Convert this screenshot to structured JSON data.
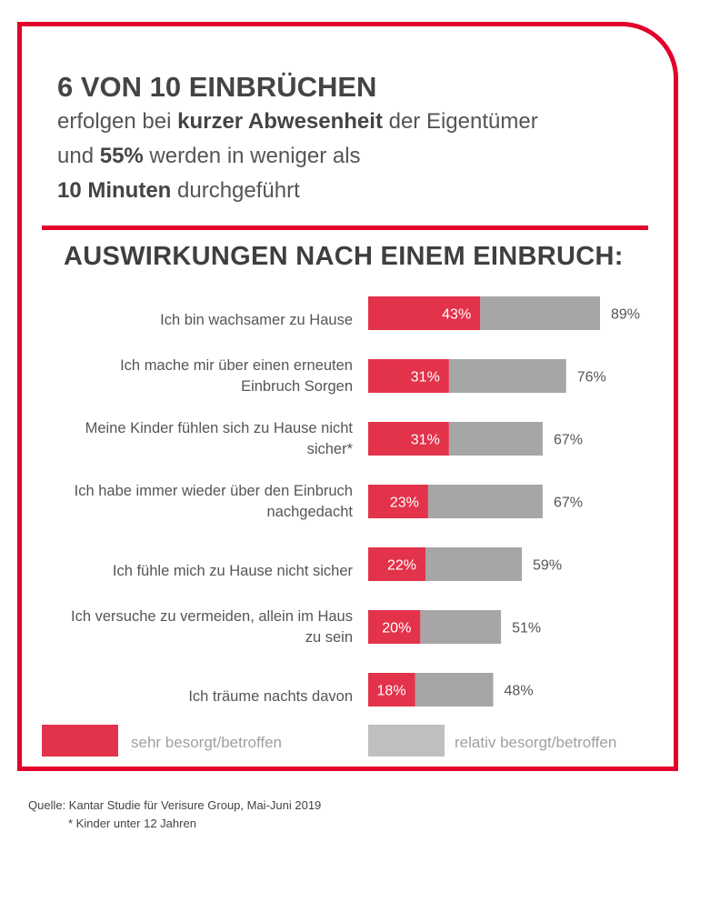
{
  "header": {
    "title": "6 VON 10 EINBRÜCHEN",
    "line1_pre": "erfolgen bei ",
    "line1_bold": "kurzer Abwesenheit",
    "line1_post": " der Eigentümer",
    "line2_pre": "und ",
    "line2_bold": "55%",
    "line2_post": " werden in weniger als",
    "line3_bold": "10 Minuten",
    "line3_post": " durchgeführt"
  },
  "section_title": "AUSWIRKUNGEN NACH EINEM EINBRUCH:",
  "colors": {
    "accent": "#e3002b",
    "bar_primary": "#e3334b",
    "bar_secondary": "#a6a6a6",
    "legend_secondary": "#bfbfbf"
  },
  "chart_data": {
    "type": "bar",
    "orientation": "horizontal",
    "stacked": true,
    "categories": [
      "Ich bin wachsamer zu Hause",
      "Ich mache mir über einen erneuten Einbruch Sorgen",
      "Meine Kinder fühlen sich zu Hause nicht sicher*",
      "Ich habe immer wieder über den Einbruch nachgedacht",
      "Ich fühle mich zu Hause nicht sicher",
      "Ich versuche zu vermeiden, allein im Haus zu sein",
      "Ich träume nachts davon"
    ],
    "series": [
      {
        "name": "sehr besorgt/betroffen",
        "values": [
          43,
          31,
          31,
          23,
          22,
          20,
          18
        ],
        "labels": [
          "43%",
          "31%",
          "31%",
          "23%",
          "22%",
          "20%",
          "18%"
        ]
      },
      {
        "name": "relativ besorgt/betroffen",
        "totals": [
          89,
          76,
          67,
          67,
          59,
          51,
          48
        ],
        "labels": [
          "89%",
          "76%",
          "67%",
          "67%",
          "59%",
          "51%",
          "48%"
        ]
      }
    ],
    "xlim": [
      0,
      100
    ]
  },
  "label_lines": [
    [
      "Ich bin wachsamer zu Hause"
    ],
    [
      "Ich mache mir über einen erneuten",
      "Einbruch Sorgen"
    ],
    [
      "Meine Kinder fühlen sich zu Hause nicht",
      "sicher*"
    ],
    [
      "Ich habe immer wieder über den Einbruch",
      "nachgedacht"
    ],
    [
      "Ich fühle mich zu Hause nicht sicher"
    ],
    [
      "Ich versuche zu vermeiden, allein im Haus",
      "zu sein"
    ],
    [
      "Ich träume nachts davon"
    ]
  ],
  "legend": {
    "primary": "sehr besorgt/betroffen",
    "secondary": "relativ besorgt/betroffen"
  },
  "footer": {
    "source": "Quelle: Kantar Studie für Verisure Group, Mai-Juni 2019",
    "footnote": "* Kinder unter 12 Jahren"
  }
}
